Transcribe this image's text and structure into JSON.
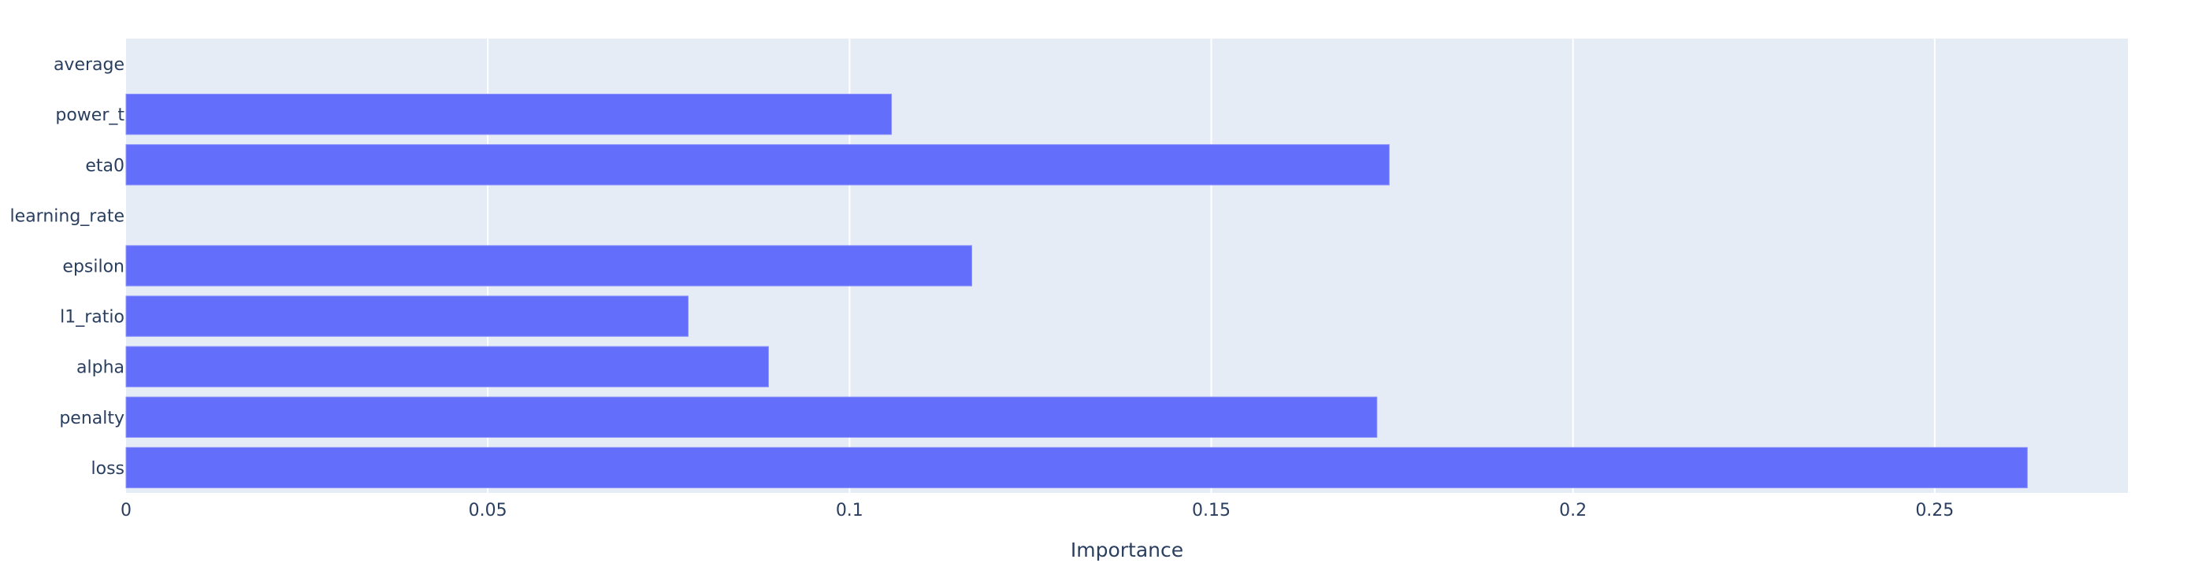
{
  "chart_data": {
    "type": "bar",
    "orientation": "horizontal",
    "title": "",
    "xlabel": "Importance",
    "ylabel": "",
    "categories": [
      "average",
      "power_t",
      "eta0",
      "learning_rate",
      "epsilon",
      "l1_ratio",
      "alpha",
      "penalty",
      "loss"
    ],
    "values": [
      0,
      0.1058,
      0.1746,
      0,
      0.1169,
      0.0777,
      0.0888,
      0.1729,
      0.2628
    ],
    "xlim": [
      0,
      0.2767
    ],
    "xticks": [
      0,
      0.05,
      0.1,
      0.15,
      0.2,
      0.25
    ],
    "xtick_labels": [
      "0",
      "0.05",
      "0.1",
      "0.15",
      "0.2",
      "0.25"
    ],
    "grid": true,
    "legend": "none",
    "colors": {
      "bar": "#636efa",
      "plot_bg": "#e5ecf6",
      "grid": "#ffffff",
      "text": "#2a3f5f"
    }
  }
}
